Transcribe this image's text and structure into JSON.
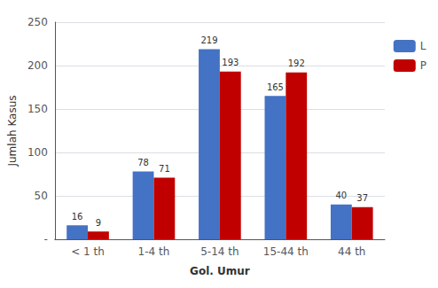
{
  "chart_data": {
    "type": "bar",
    "categories": [
      "< 1 th",
      "1-4 th",
      "5-14 th",
      "15-44 th",
      "44 th"
    ],
    "series": [
      {
        "name": "L",
        "color": "#4472C4",
        "values": [
          16,
          78,
          219,
          165,
          40
        ]
      },
      {
        "name": "P",
        "color": "#C00000",
        "values": [
          9,
          71,
          193,
          192,
          37
        ]
      }
    ],
    "x_label": "Gol. Umur",
    "y_label": "Jumlah Kasus",
    "ylim": [
      0,
      250
    ],
    "yticks": [
      {
        "value": 0,
        "label": "-"
      },
      50,
      100,
      150,
      200,
      250
    ],
    "grid": true,
    "legend": "right",
    "data_labels": true
  }
}
